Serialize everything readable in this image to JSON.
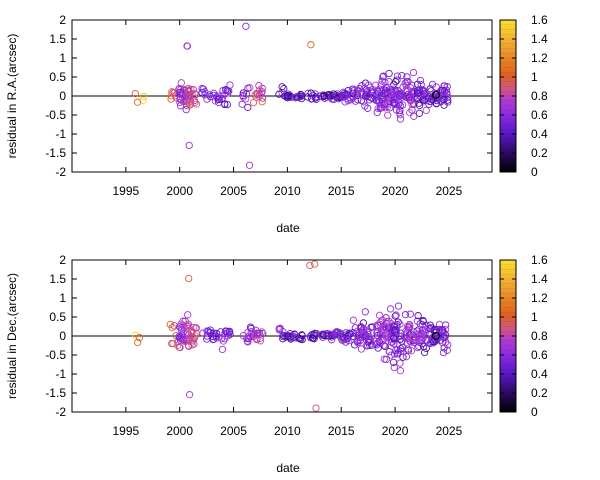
{
  "chart_data": [
    {
      "type": "scatter",
      "xlabel": "date",
      "ylabel": "residual in R.A.(arcsec)",
      "xlim": [
        1990,
        2029
      ],
      "ylim": [
        -2,
        2
      ],
      "xticks": [
        "1995",
        "2000",
        "2005",
        "2010",
        "2015",
        "2020",
        "2025"
      ],
      "yticks": [
        "-2",
        "-1.5",
        "-1",
        "-0.5",
        "0",
        "0.5",
        "1",
        "1.5",
        "2"
      ],
      "colorbar": {
        "min": 0,
        "max": 1.6,
        "ticks": [
          "0",
          "0.2",
          "0.4",
          "0.6",
          "0.8",
          "1",
          "1.2",
          "1.4",
          "1.6"
        ]
      },
      "zero_line": true,
      "series": [
        {
          "clusters": [
            {
              "x": 1996.3,
              "n": 4,
              "spread": 0.25,
              "c": 1.35
            },
            {
              "x": 1999.5,
              "n": 8,
              "spread": 0.35,
              "c": 1.05
            },
            {
              "x": 2000.4,
              "n": 28,
              "spread": 0.55,
              "c": 0.65
            },
            {
              "x": 2000.5,
              "n": 3,
              "spread": 1.35,
              "c": 0.6
            },
            {
              "x": 2001.2,
              "n": 20,
              "spread": 0.4,
              "c": 0.95
            },
            {
              "x": 2002.5,
              "n": 8,
              "spread": 0.25,
              "c": 0.5
            },
            {
              "x": 2003.5,
              "n": 10,
              "spread": 0.3,
              "c": 0.55
            },
            {
              "x": 2004.4,
              "n": 12,
              "spread": 0.45,
              "c": 0.6
            },
            {
              "x": 2006.2,
              "n": 10,
              "spread": 0.45,
              "c": 0.65
            },
            {
              "x": 2006.2,
              "n": 2,
              "spread": 1.9,
              "c": 0.65
            },
            {
              "x": 2007.3,
              "n": 14,
              "spread": 0.35,
              "c": 0.95
            },
            {
              "x": 2009.3,
              "n": 4,
              "spread": 0.3,
              "c": 0.55
            },
            {
              "x": 2010.0,
              "n": 12,
              "spread": 0.08,
              "c": 0.4
            },
            {
              "x": 2011.0,
              "n": 10,
              "spread": 0.12,
              "c": 0.45
            },
            {
              "x": 2012.3,
              "n": 10,
              "spread": 0.15,
              "c": 0.45
            },
            {
              "x": 2012.4,
              "n": 1,
              "spread": 1.35,
              "c": 1.0
            },
            {
              "x": 2013.5,
              "n": 12,
              "spread": 0.12,
              "c": 0.4
            },
            {
              "x": 2014.5,
              "n": 14,
              "spread": 0.15,
              "c": 0.45
            },
            {
              "x": 2015.5,
              "n": 16,
              "spread": 0.3,
              "c": 0.5
            },
            {
              "x": 2016.5,
              "n": 20,
              "spread": 0.35,
              "c": 0.55
            },
            {
              "x": 2017.5,
              "n": 22,
              "spread": 0.45,
              "c": 0.55
            },
            {
              "x": 2018.6,
              "n": 30,
              "spread": 0.6,
              "c": 0.6
            },
            {
              "x": 2019.5,
              "n": 34,
              "spread": 0.85,
              "c": 0.62
            },
            {
              "x": 2020.3,
              "n": 36,
              "spread": 0.8,
              "c": 0.55
            },
            {
              "x": 2021.4,
              "n": 32,
              "spread": 0.75,
              "c": 0.65
            },
            {
              "x": 2022.5,
              "n": 30,
              "spread": 0.6,
              "c": 0.55
            },
            {
              "x": 2023.5,
              "n": 22,
              "spread": 0.45,
              "c": 0.5
            },
            {
              "x": 2024.5,
              "n": 24,
              "spread": 0.5,
              "c": 0.55
            }
          ]
        }
      ],
      "highlight": {
        "x": 2023.8,
        "y": 0.03
      }
    },
    {
      "type": "scatter",
      "xlabel": "date",
      "ylabel": "residual in Dec.(arcsec)",
      "xlim": [
        1990,
        2029
      ],
      "ylim": [
        -2,
        2
      ],
      "xticks": [
        "1995",
        "2000",
        "2005",
        "2010",
        "2015",
        "2020",
        "2025"
      ],
      "yticks": [
        "-2",
        "-1.5",
        "-1",
        "-0.5",
        "0",
        "0.5",
        "1",
        "1.5",
        "2"
      ],
      "colorbar": {
        "min": 0,
        "max": 1.6,
        "ticks": [
          "0",
          "0.2",
          "0.4",
          "0.6",
          "0.8",
          "1",
          "1.2",
          "1.4",
          "1.6"
        ]
      },
      "zero_line": true,
      "series": [
        {
          "clusters": [
            {
              "x": 1996.3,
              "n": 3,
              "spread": 0.25,
              "c": 1.35
            },
            {
              "x": 1999.5,
              "n": 8,
              "spread": 0.6,
              "c": 1.05
            },
            {
              "x": 2000.4,
              "n": 30,
              "spread": 0.75,
              "c": 0.7
            },
            {
              "x": 2001.2,
              "n": 22,
              "spread": 0.55,
              "c": 0.95
            },
            {
              "x": 2001.1,
              "n": 2,
              "spread": 1.55,
              "c": 1.0
            },
            {
              "x": 2002.5,
              "n": 8,
              "spread": 0.3,
              "c": 0.5
            },
            {
              "x": 2003.5,
              "n": 10,
              "spread": 0.25,
              "c": 0.55
            },
            {
              "x": 2004.4,
              "n": 12,
              "spread": 0.45,
              "c": 0.6
            },
            {
              "x": 2006.2,
              "n": 12,
              "spread": 0.45,
              "c": 0.65
            },
            {
              "x": 2007.3,
              "n": 14,
              "spread": 0.35,
              "c": 0.75
            },
            {
              "x": 2009.3,
              "n": 4,
              "spread": 0.3,
              "c": 0.55
            },
            {
              "x": 2010.0,
              "n": 12,
              "spread": 0.12,
              "c": 0.4
            },
            {
              "x": 2011.0,
              "n": 10,
              "spread": 0.15,
              "c": 0.45
            },
            {
              "x": 2012.3,
              "n": 10,
              "spread": 0.15,
              "c": 0.45
            },
            {
              "x": 2012.4,
              "n": 3,
              "spread": 1.9,
              "c": 1.0
            },
            {
              "x": 2013.5,
              "n": 12,
              "spread": 0.15,
              "c": 0.45
            },
            {
              "x": 2014.5,
              "n": 14,
              "spread": 0.2,
              "c": 0.45
            },
            {
              "x": 2015.5,
              "n": 16,
              "spread": 0.3,
              "c": 0.5
            },
            {
              "x": 2016.5,
              "n": 22,
              "spread": 0.45,
              "c": 0.55
            },
            {
              "x": 2017.5,
              "n": 26,
              "spread": 0.8,
              "c": 0.55
            },
            {
              "x": 2018.6,
              "n": 30,
              "spread": 0.7,
              "c": 0.6
            },
            {
              "x": 2019.5,
              "n": 34,
              "spread": 0.9,
              "c": 0.62
            },
            {
              "x": 2020.3,
              "n": 36,
              "spread": 1.05,
              "c": 0.55
            },
            {
              "x": 2021.4,
              "n": 32,
              "spread": 0.8,
              "c": 0.65
            },
            {
              "x": 2022.5,
              "n": 30,
              "spread": 0.7,
              "c": 0.55
            },
            {
              "x": 2023.5,
              "n": 22,
              "spread": 0.5,
              "c": 0.5
            },
            {
              "x": 2024.5,
              "n": 24,
              "spread": 0.55,
              "c": 0.55
            }
          ]
        }
      ],
      "highlight": {
        "x": 2023.8,
        "y": 0.0
      }
    }
  ],
  "colormap": [
    "#000000",
    "#2a0a5e",
    "#5a16c8",
    "#8a2be2",
    "#b03ad0",
    "#d2567a",
    "#e0641c",
    "#f0a030",
    "#f8e030"
  ]
}
